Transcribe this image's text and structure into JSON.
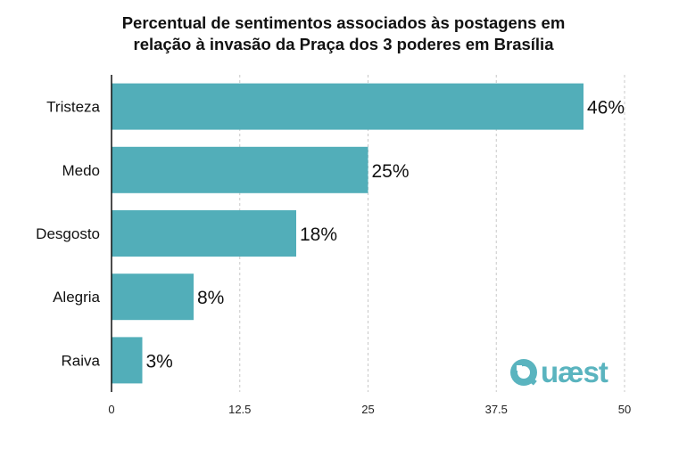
{
  "title_line1": "Percentual de sentimentos associados às postagens em",
  "title_line2": "relação à invasão da Praça dos 3 poderes em Brasília",
  "logo_text": "uæst",
  "logo_initial": "Q",
  "colors": {
    "bar": "#52aeb9",
    "axis": "#111111",
    "grid": "#c8c8c8",
    "logo": "#5ab4bf"
  },
  "chart_data": {
    "type": "bar",
    "orientation": "horizontal",
    "title": "Percentual de sentimentos associados às postagens em relação à invasão da Praça dos 3 poderes em Brasília",
    "categories": [
      "Tristeza",
      "Medo",
      "Desgosto",
      "Alegria",
      "Raiva"
    ],
    "values": [
      46,
      25,
      18,
      8,
      3
    ],
    "value_labels": [
      "46%",
      "25%",
      "18%",
      "8%",
      "3%"
    ],
    "x_ticks": [
      0,
      12.5,
      25,
      37.5,
      50
    ],
    "x_tick_labels": [
      "0",
      "12.5",
      "25",
      "37.5",
      "50"
    ],
    "xlim": [
      0,
      50
    ],
    "grid": "vertical dashed"
  }
}
